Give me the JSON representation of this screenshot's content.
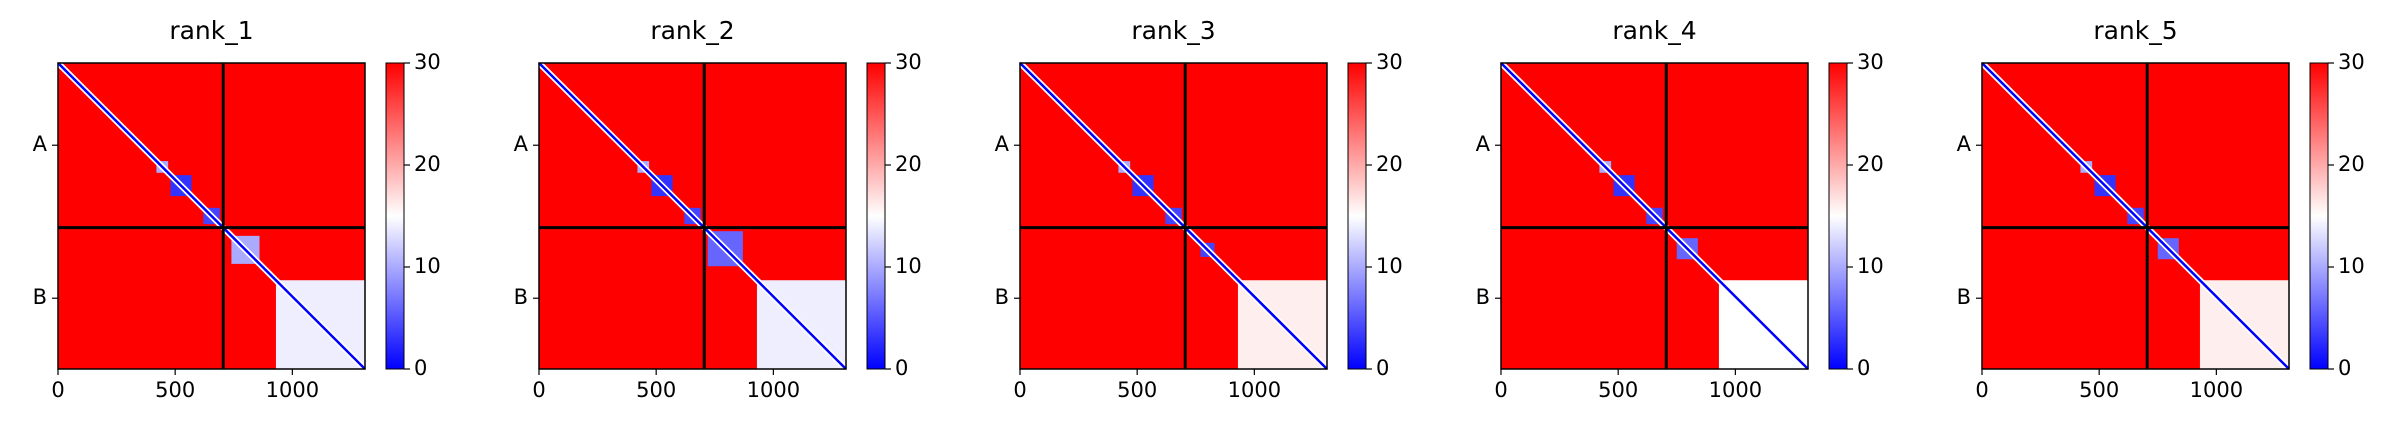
{
  "chart_data": [
    {
      "type": "heatmap",
      "title": "rank_1",
      "xlim": [
        0,
        1310
      ],
      "ylim": [
        1310,
        0
      ],
      "xticks": [
        0,
        500,
        1000
      ],
      "yticks": [
        {
          "value": 352,
          "label": "A"
        },
        {
          "value": 1007,
          "label": "B"
        }
      ],
      "chain_boundary": 705,
      "background_value": 30,
      "diagonal_value": 0,
      "clim": [
        0,
        30
      ],
      "cticks": [
        0,
        10,
        20,
        30
      ],
      "colormap": [
        "#0000ff",
        "#ffffff",
        "#ff0000"
      ],
      "blocks": [
        {
          "range": [
            420,
            470
          ],
          "value": 10
        },
        {
          "range": [
            480,
            570
          ],
          "value": 3
        },
        {
          "range": [
            620,
            690
          ],
          "value": 4
        },
        {
          "range": [
            740,
            860
          ],
          "value": 10
        },
        {
          "range": [
            930,
            1310
          ],
          "value": 14
        }
      ]
    },
    {
      "type": "heatmap",
      "title": "rank_2",
      "xlim": [
        0,
        1310
      ],
      "ylim": [
        1310,
        0
      ],
      "xticks": [
        0,
        500,
        1000
      ],
      "yticks": [
        {
          "value": 352,
          "label": "A"
        },
        {
          "value": 1007,
          "label": "B"
        }
      ],
      "chain_boundary": 705,
      "background_value": 30,
      "diagonal_value": 0,
      "clim": [
        0,
        30
      ],
      "cticks": [
        0,
        10,
        20,
        30
      ],
      "colormap": [
        "#0000ff",
        "#ffffff",
        "#ff0000"
      ],
      "blocks": [
        {
          "range": [
            420,
            470
          ],
          "value": 10
        },
        {
          "range": [
            480,
            570
          ],
          "value": 3
        },
        {
          "range": [
            620,
            690
          ],
          "value": 4
        },
        {
          "range": [
            720,
            870
          ],
          "value": 6
        },
        {
          "range": [
            930,
            1310
          ],
          "value": 14
        }
      ]
    },
    {
      "type": "heatmap",
      "title": "rank_3",
      "xlim": [
        0,
        1310
      ],
      "ylim": [
        1310,
        0
      ],
      "xticks": [
        0,
        500,
        1000
      ],
      "yticks": [
        {
          "value": 352,
          "label": "A"
        },
        {
          "value": 1007,
          "label": "B"
        }
      ],
      "chain_boundary": 705,
      "background_value": 30,
      "diagonal_value": 0,
      "clim": [
        0,
        30
      ],
      "cticks": [
        0,
        10,
        20,
        30
      ],
      "colormap": [
        "#0000ff",
        "#ffffff",
        "#ff0000"
      ],
      "blocks": [
        {
          "range": [
            420,
            470
          ],
          "value": 10
        },
        {
          "range": [
            480,
            570
          ],
          "value": 3
        },
        {
          "range": [
            620,
            690
          ],
          "value": 4
        },
        {
          "range": [
            770,
            830
          ],
          "value": 4
        },
        {
          "range": [
            930,
            1310
          ],
          "value": 16
        }
      ]
    },
    {
      "type": "heatmap",
      "title": "rank_4",
      "xlim": [
        0,
        1310
      ],
      "ylim": [
        1310,
        0
      ],
      "xticks": [
        0,
        500,
        1000
      ],
      "yticks": [
        {
          "value": 352,
          "label": "A"
        },
        {
          "value": 1007,
          "label": "B"
        }
      ],
      "chain_boundary": 705,
      "background_value": 30,
      "diagonal_value": 0,
      "clim": [
        0,
        30
      ],
      "cticks": [
        0,
        10,
        20,
        30
      ],
      "colormap": [
        "#0000ff",
        "#ffffff",
        "#ff0000"
      ],
      "blocks": [
        {
          "range": [
            420,
            470
          ],
          "value": 10
        },
        {
          "range": [
            480,
            570
          ],
          "value": 3
        },
        {
          "range": [
            620,
            690
          ],
          "value": 4
        },
        {
          "range": [
            750,
            840
          ],
          "value": 6
        },
        {
          "range": [
            930,
            1310
          ],
          "value": 15
        }
      ]
    },
    {
      "type": "heatmap",
      "title": "rank_5",
      "xlim": [
        0,
        1310
      ],
      "ylim": [
        1310,
        0
      ],
      "xticks": [
        0,
        500,
        1000
      ],
      "yticks": [
        {
          "value": 352,
          "label": "A"
        },
        {
          "value": 1007,
          "label": "B"
        }
      ],
      "chain_boundary": 705,
      "background_value": 30,
      "diagonal_value": 0,
      "clim": [
        0,
        30
      ],
      "cticks": [
        0,
        10,
        20,
        30
      ],
      "colormap": [
        "#0000ff",
        "#ffffff",
        "#ff0000"
      ],
      "blocks": [
        {
          "range": [
            420,
            470
          ],
          "value": 10
        },
        {
          "range": [
            480,
            570
          ],
          "value": 3
        },
        {
          "range": [
            620,
            690
          ],
          "value": 4
        },
        {
          "range": [
            750,
            840
          ],
          "value": 6
        },
        {
          "range": [
            930,
            1310
          ],
          "value": 16
        }
      ]
    }
  ]
}
